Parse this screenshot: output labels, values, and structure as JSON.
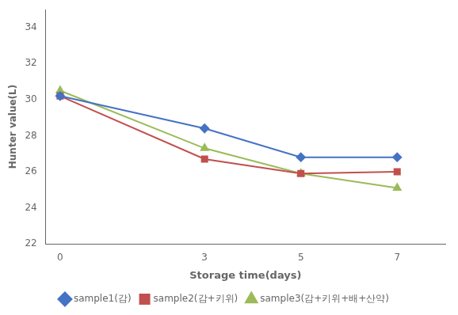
{
  "chart_data": {
    "type": "line",
    "xlabel": "Storage time(days)",
    "ylabel": "Hunter value(L)",
    "x": [
      0,
      3,
      5,
      7
    ],
    "series": [
      {
        "name": "sample1(감)",
        "color": "#4472C4",
        "marker": "diamond",
        "values": [
          30.2,
          28.4,
          26.8,
          26.8
        ]
      },
      {
        "name": "sample2(감+키위)",
        "color": "#C0504D",
        "marker": "square",
        "values": [
          30.2,
          26.7,
          25.9,
          26.0
        ]
      },
      {
        "name": "sample3(감+키위+배+산약)",
        "color": "#9BBB59",
        "marker": "triangle",
        "values": [
          30.5,
          27.3,
          25.9,
          25.1
        ]
      }
    ],
    "xlim": [
      -0.3,
      8.0
    ],
    "xticks": [
      0,
      3,
      5,
      7
    ],
    "ylim": [
      22,
      35
    ],
    "yticks": [
      22,
      24,
      26,
      28,
      30,
      32,
      34
    ],
    "grid": false,
    "legend": "bottom"
  }
}
